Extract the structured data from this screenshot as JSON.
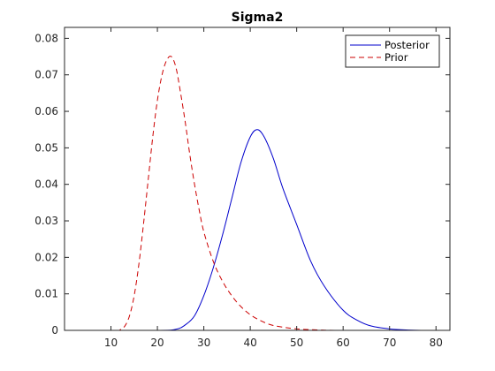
{
  "chart_data": {
    "type": "line",
    "title": "Sigma2",
    "xlim": [
      0,
      83
    ],
    "ylim": [
      0,
      0.083
    ],
    "x_ticks": [
      10,
      20,
      30,
      40,
      50,
      60,
      70,
      80
    ],
    "y_ticks": [
      0,
      0.01,
      0.02,
      0.03,
      0.04,
      0.05,
      0.06,
      0.07,
      0.08
    ],
    "x_tick_labels": [
      "10",
      "20",
      "30",
      "40",
      "50",
      "60",
      "70",
      "80"
    ],
    "y_tick_labels": [
      "0",
      "0.01",
      "0.02",
      "0.03",
      "0.04",
      "0.05",
      "0.06",
      "0.07",
      "0.08"
    ],
    "grid": false,
    "legend_location": "top-right",
    "series": [
      {
        "name": "Posterior",
        "color": "#0000cc",
        "style": "solid",
        "x": [
          0,
          20,
          24,
          26,
          28,
          30,
          32,
          34,
          36,
          38,
          40,
          41.5,
          43,
          45,
          47,
          50,
          53,
          56,
          60,
          63,
          66,
          70,
          74,
          78,
          83
        ],
        "y": [
          0,
          0,
          0.0003,
          0.0015,
          0.004,
          0.0095,
          0.017,
          0.026,
          0.036,
          0.046,
          0.053,
          0.055,
          0.053,
          0.047,
          0.039,
          0.029,
          0.019,
          0.012,
          0.0055,
          0.0028,
          0.0012,
          0.0004,
          0.0001,
          0,
          0
        ]
      },
      {
        "name": "Prior",
        "color": "#cc0000",
        "style": "dashed",
        "x": [
          0,
          11,
          12,
          13,
          14,
          15,
          16,
          17,
          18,
          19,
          20,
          21,
          22,
          23,
          24,
          25,
          26,
          27,
          28,
          29,
          30,
          32,
          34,
          36,
          38,
          40,
          42,
          44,
          46,
          50,
          55,
          60,
          83
        ],
        "y": [
          0,
          0,
          0.0002,
          0.0012,
          0.004,
          0.0095,
          0.018,
          0.029,
          0.041,
          0.053,
          0.063,
          0.07,
          0.074,
          0.075,
          0.072,
          0.065,
          0.057,
          0.048,
          0.04,
          0.033,
          0.027,
          0.019,
          0.0135,
          0.0095,
          0.0065,
          0.0043,
          0.0028,
          0.0017,
          0.0011,
          0.0004,
          0.0001,
          0,
          0
        ]
      }
    ]
  }
}
